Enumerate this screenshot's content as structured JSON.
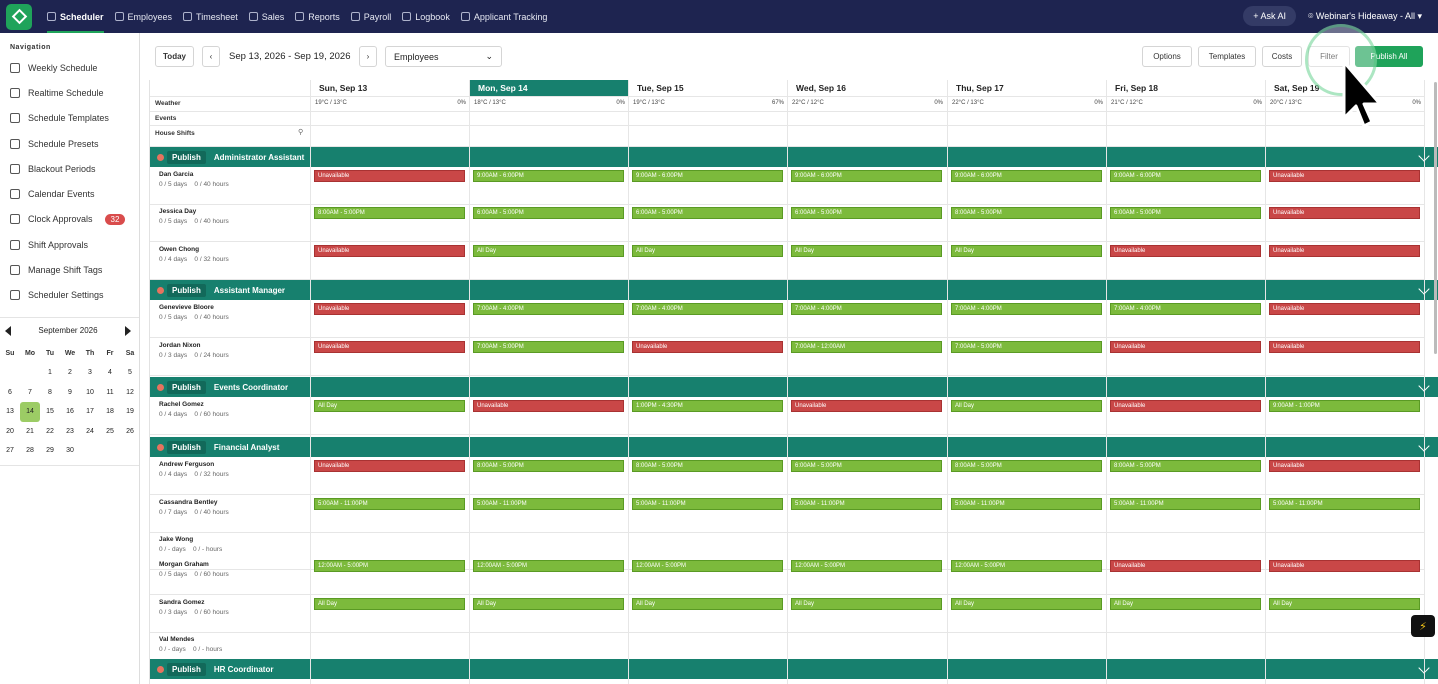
{
  "topnav": {
    "items": [
      {
        "label": "Scheduler",
        "icon": "calendar-icon",
        "active": true
      },
      {
        "label": "Employees",
        "icon": "person-icon"
      },
      {
        "label": "Timesheet",
        "icon": "clock-icon"
      },
      {
        "label": "Sales",
        "icon": "bank-icon"
      },
      {
        "label": "Reports",
        "icon": "chart-icon"
      },
      {
        "label": "Payroll",
        "icon": "wallet-icon"
      },
      {
        "label": "Logbook",
        "icon": "book-icon"
      },
      {
        "label": "Applicant Tracking",
        "icon": "clipboard-icon"
      }
    ],
    "ask_ai": "Ask AI",
    "location": "Webinar's Hideaway - All"
  },
  "sidebar": {
    "title": "Navigation",
    "items": [
      {
        "label": "Weekly Schedule"
      },
      {
        "label": "Realtime Schedule"
      },
      {
        "label": "Schedule Templates"
      },
      {
        "label": "Schedule Presets"
      },
      {
        "label": "Blackout Periods"
      },
      {
        "label": "Calendar Events"
      },
      {
        "label": "Clock Approvals",
        "badge": "32"
      },
      {
        "label": "Shift Approvals"
      },
      {
        "label": "Manage Shift Tags"
      },
      {
        "label": "Scheduler Settings"
      }
    ],
    "calendar": {
      "month": "September 2026",
      "dow": [
        "Su",
        "Mo",
        "Tu",
        "We",
        "Th",
        "Fr",
        "Sa"
      ],
      "weeks": [
        [
          "",
          "",
          "1",
          "2",
          "3",
          "4",
          "5"
        ],
        [
          "6",
          "7",
          "8",
          "9",
          "10",
          "11",
          "12"
        ],
        [
          "13",
          "14",
          "15",
          "16",
          "17",
          "18",
          "19"
        ],
        [
          "20",
          "21",
          "22",
          "23",
          "24",
          "25",
          "26"
        ],
        [
          "27",
          "28",
          "29",
          "30",
          "",
          "",
          ""
        ]
      ],
      "today": "14"
    }
  },
  "toolbar": {
    "today": "Today",
    "date_range": "Sep 13, 2026 - Sep 19, 2026",
    "view_select": "Employees",
    "options": "Options",
    "templates": "Templates",
    "costs": "Costs",
    "filter": "Filter",
    "publish_all": "Publish All"
  },
  "days": [
    {
      "label": "Sun, Sep 13",
      "weather": "19°C / 13°C",
      "precip": "0%"
    },
    {
      "label": "Mon, Sep 14",
      "weather": "18°C / 13°C",
      "precip": "0%",
      "today": true
    },
    {
      "label": "Tue, Sep 15",
      "weather": "19°C / 13°C",
      "precip": "67%"
    },
    {
      "label": "Wed, Sep 16",
      "weather": "22°C / 12°C",
      "precip": "0%"
    },
    {
      "label": "Thu, Sep 17",
      "weather": "22°C / 13°C",
      "precip": "0%"
    },
    {
      "label": "Fri, Sep 18",
      "weather": "21°C / 12°C",
      "precip": "0%"
    },
    {
      "label": "Sat, Sep 19",
      "weather": "20°C / 13°C",
      "precip": "0%"
    }
  ],
  "row_labels": {
    "weather": "Weather",
    "events": "Events",
    "house_shifts": "House Shifts"
  },
  "publish_label": "Publish",
  "sections": [
    {
      "name": "Administrator Assistant",
      "employees": [
        {
          "name": "Dan Garcia",
          "stats": "0 / 5 days    0 / 40 hours",
          "shifts": [
            "Unavailable",
            "9:00AM - 6:00PM",
            "9:00AM - 6:00PM",
            "9:00AM - 6:00PM",
            "9:00AM - 6:00PM",
            "9:00AM - 6:00PM",
            "Unavailable"
          ]
        },
        {
          "name": "Jessica Day",
          "stats": "0 / 5 days    0 / 40 hours",
          "shifts": [
            "8:00AM - 5:00PM",
            "6:00AM - 5:00PM",
            "6:00AM - 5:00PM",
            "6:00AM - 5:00PM",
            "8:00AM - 5:00PM",
            "6:00AM - 5:00PM",
            "Unavailable"
          ]
        },
        {
          "name": "Owen Chong",
          "stats": "0 / 4 days    0 / 32 hours",
          "shifts": [
            "Unavailable",
            "All Day",
            "All Day",
            "All Day",
            "All Day",
            "Unavailable",
            "Unavailable"
          ]
        }
      ]
    },
    {
      "name": "Assistant Manager",
      "employees": [
        {
          "name": "Genevieve Bloore",
          "stats": "0 / 5 days    0 / 40 hours",
          "shifts": [
            "Unavailable",
            "7:00AM - 4:00PM",
            "7:00AM - 4:00PM",
            "7:00AM - 4:00PM",
            "7:00AM - 4:00PM",
            "7:00AM - 4:00PM",
            "Unavailable"
          ]
        },
        {
          "name": "Jordan Nixon",
          "stats": "0 / 3 days    0 / 24 hours",
          "shifts": [
            "Unavailable",
            "7:00AM - 5:00PM",
            "Unavailable",
            "7:00AM - 12:00AM",
            "7:00AM - 5:00PM",
            "Unavailable",
            "Unavailable"
          ]
        }
      ]
    },
    {
      "name": "Events Coordinator",
      "employees": [
        {
          "name": "Rachel Gomez",
          "stats": "0 / 4 days    0 / 60 hours",
          "shifts": [
            "All Day",
            "Unavailable",
            "1:00PM - 4:30PM",
            "Unavailable",
            "All Day",
            "Unavailable",
            "9:00AM - 1:00PM"
          ]
        }
      ]
    },
    {
      "name": "Financial Analyst",
      "employees": [
        {
          "name": "Andrew Ferguson",
          "stats": "0 / 4 days    0 / 32 hours",
          "shifts": [
            "Unavailable",
            "8:00AM - 5:00PM",
            "8:00AM - 5:00PM",
            "6:00AM - 5:00PM",
            "8:00AM - 5:00PM",
            "8:00AM - 5:00PM",
            "Unavailable"
          ]
        },
        {
          "name": "Cassandra Bentley",
          "stats": "0 / 7 days    0 / 40 hours",
          "shifts": [
            "5:00AM - 11:00PM",
            "5:00AM - 11:00PM",
            "5:00AM - 11:00PM",
            "5:00AM - 11:00PM",
            "5:00AM - 11:00PM",
            "5:00AM - 11:00PM",
            "5:00AM - 11:00PM"
          ]
        },
        {
          "name": "Jake Wong",
          "stats": "0 / - days    0 / - hours",
          "shifts": [
            "",
            "",
            "",
            "",
            "",
            "",
            ""
          ]
        },
        {
          "name": "Morgan Graham",
          "stats": "0 / 5 days    0 / 60 hours",
          "shifts": [
            "12:00AM - 5:00PM",
            "12:00AM - 5:00PM",
            "12:00AM - 5:00PM",
            "12:00AM - 5:00PM",
            "12:00AM - 5:00PM",
            "Unavailable",
            "Unavailable"
          ]
        },
        {
          "name": "Sandra Gomez",
          "stats": "0 / 3 days    0 / 60 hours",
          "shifts": [
            "All Day",
            "All Day",
            "All Day",
            "All Day",
            "All Day",
            "All Day",
            "All Day"
          ]
        },
        {
          "name": "Val Mendes",
          "stats": "0 / - days    0 / - hours",
          "shifts": [
            "",
            "",
            "",
            "",
            "",
            "",
            ""
          ]
        }
      ]
    },
    {
      "name": "HR Coordinator",
      "employees": []
    }
  ],
  "colors": {
    "nav_bg": "#1e2450",
    "accent": "#1fa35a",
    "section_bg": "#17806e",
    "shift_green": "#7cba3c",
    "shift_red": "#c94747"
  }
}
